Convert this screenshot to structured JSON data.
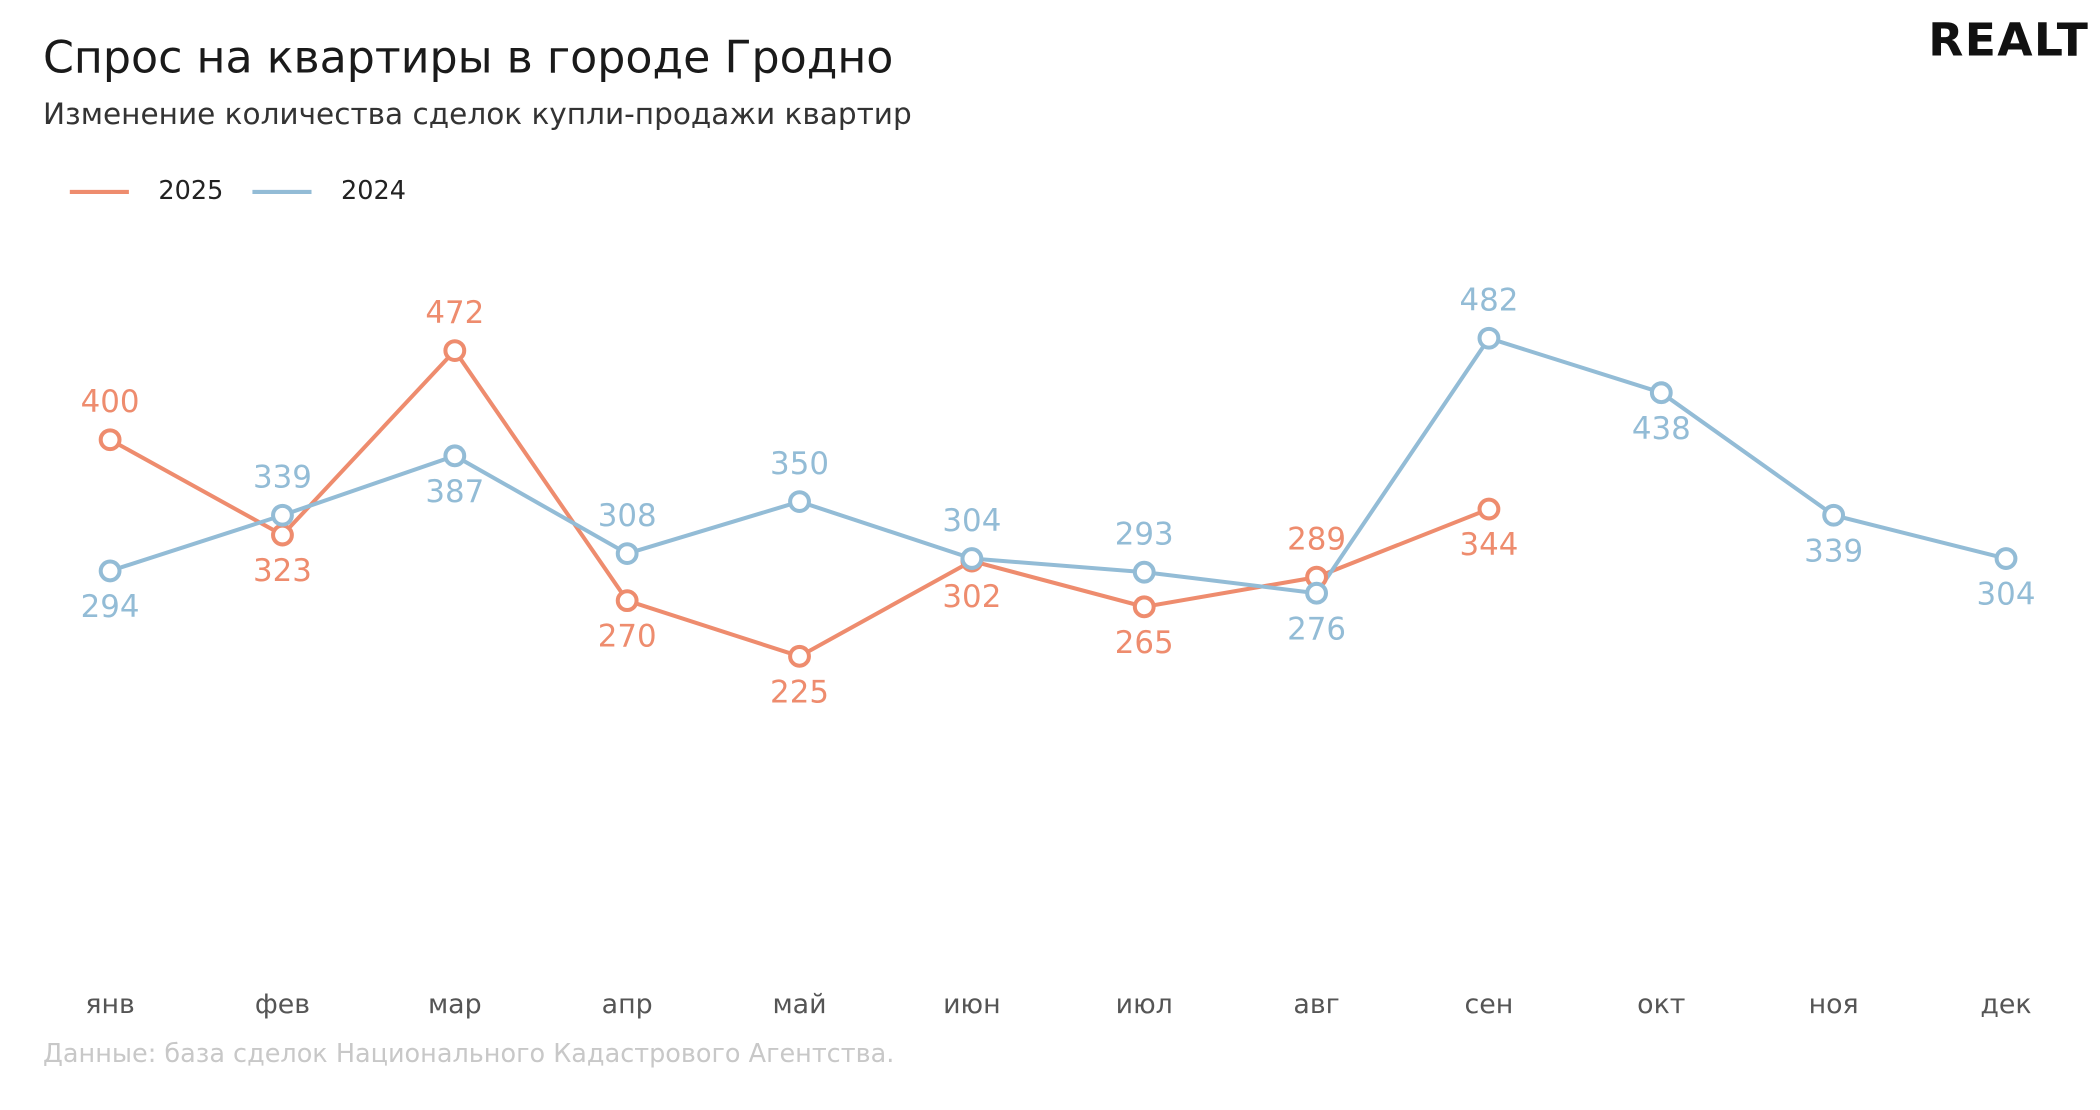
{
  "chart_data": {
    "type": "line",
    "title": "Спрос на квартиры в городе Гродно",
    "subtitle": "Изменение количества сделок купли-продажи квартир",
    "brand": "REALT",
    "source": "Данные: база сделок Национального Кадастрового Агентства.",
    "categories": [
      "янв",
      "фев",
      "мар",
      "апр",
      "май",
      "июн",
      "июл",
      "авг",
      "сен",
      "окт",
      "ноя",
      "дек"
    ],
    "series": [
      {
        "name": "2025",
        "color": "#ee8c6e",
        "values": [
          400,
          323,
          472,
          270,
          225,
          302,
          265,
          289,
          344,
          null,
          null,
          null
        ]
      },
      {
        "name": "2024",
        "color": "#93bcd6",
        "values": [
          294,
          339,
          387,
          308,
          350,
          304,
          293,
          276,
          482,
          438,
          339,
          304
        ]
      }
    ],
    "legend": "top-left"
  }
}
